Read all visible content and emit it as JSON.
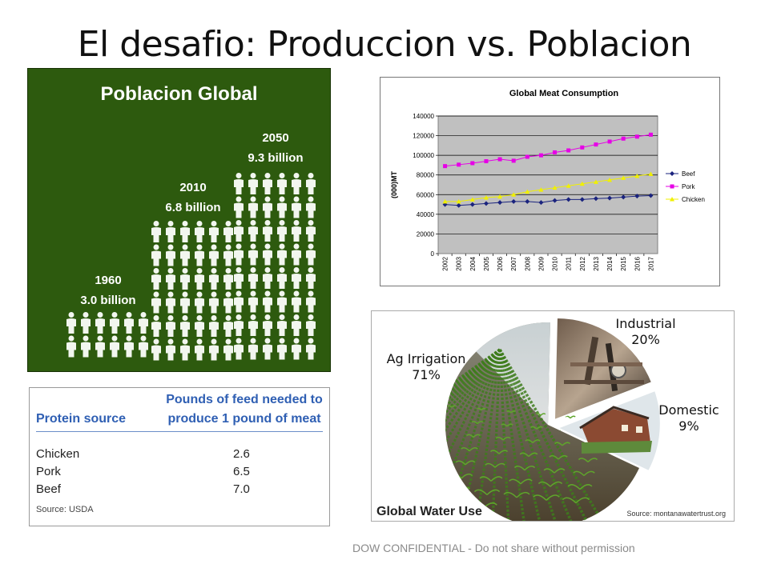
{
  "slide": {
    "title": "El desafio: Produccion vs. Poblacion",
    "footer": "DOW CONFIDENTIAL - Do not share without permission"
  },
  "population": {
    "title": "Poblacion Global",
    "bg_color": "#2d5a0e",
    "columns": [
      {
        "year": "1960",
        "value": "3.0 billion",
        "billions": 3.0
      },
      {
        "year": "2010",
        "value": "6.8 billion",
        "billions": 6.8
      },
      {
        "year": "2050",
        "value": "9.3 billion",
        "billions": 9.3
      }
    ],
    "icon": "person-icon"
  },
  "chart_data": {
    "type": "line",
    "title": "Global Meat Consumption",
    "ylabel": "(000)MT",
    "xlabel": "",
    "x": [
      "2002",
      "2003",
      "2004",
      "2005",
      "2006",
      "2007",
      "2008",
      "2009",
      "2010",
      "2011",
      "2012",
      "2013",
      "2014",
      "2015",
      "2016",
      "2017"
    ],
    "ylim": [
      0,
      140000
    ],
    "yticks": [
      0,
      20000,
      40000,
      60000,
      80000,
      100000,
      120000,
      140000
    ],
    "grid": true,
    "legend": "right",
    "plot_bg": "#c0c0c0",
    "series": [
      {
        "name": "Beef",
        "color": "#1a237e",
        "marker": "diamond",
        "values": [
          50000,
          49000,
          50000,
          51000,
          52000,
          53000,
          53000,
          52000,
          54000,
          55000,
          55000,
          56000,
          56500,
          57500,
          58500,
          59000
        ]
      },
      {
        "name": "Pork",
        "color": "#e600e6",
        "marker": "square",
        "values": [
          89000,
          90500,
          92000,
          94000,
          96000,
          94500,
          98500,
          100000,
          103000,
          105000,
          108000,
          111000,
          114000,
          117000,
          119000,
          121000
        ]
      },
      {
        "name": "Chicken",
        "color": "#f0f000",
        "marker": "triangle",
        "values": [
          53000,
          53000,
          55000,
          57000,
          58000,
          60000,
          63000,
          65000,
          67000,
          69000,
          71000,
          73000,
          75000,
          77000,
          79000,
          81000
        ]
      }
    ]
  },
  "protein": {
    "col1_header": "Protein source",
    "col2_header_line1": "Pounds of feed needed to",
    "col2_header_line2": "produce 1 pound of meat",
    "rows": [
      {
        "source": "Chicken",
        "pounds": "2.6"
      },
      {
        "source": "Pork",
        "pounds": "6.5"
      },
      {
        "source": "Beef",
        "pounds": "7.0"
      }
    ],
    "source_note": "Source: USDA",
    "header_color": "#2f5fb3"
  },
  "water": {
    "title": "Global Water Use",
    "source_note": "Source: montanawatertrust.org",
    "slices": [
      {
        "label": "Ag Irrigation",
        "pct_label": "71%",
        "pct": 71,
        "picture": "corn-field"
      },
      {
        "label": "Industrial",
        "pct_label": "20%",
        "pct": 20,
        "picture": "factory-pipes"
      },
      {
        "label": "Domestic",
        "pct_label": "9%",
        "pct": 9,
        "picture": "house"
      }
    ]
  }
}
